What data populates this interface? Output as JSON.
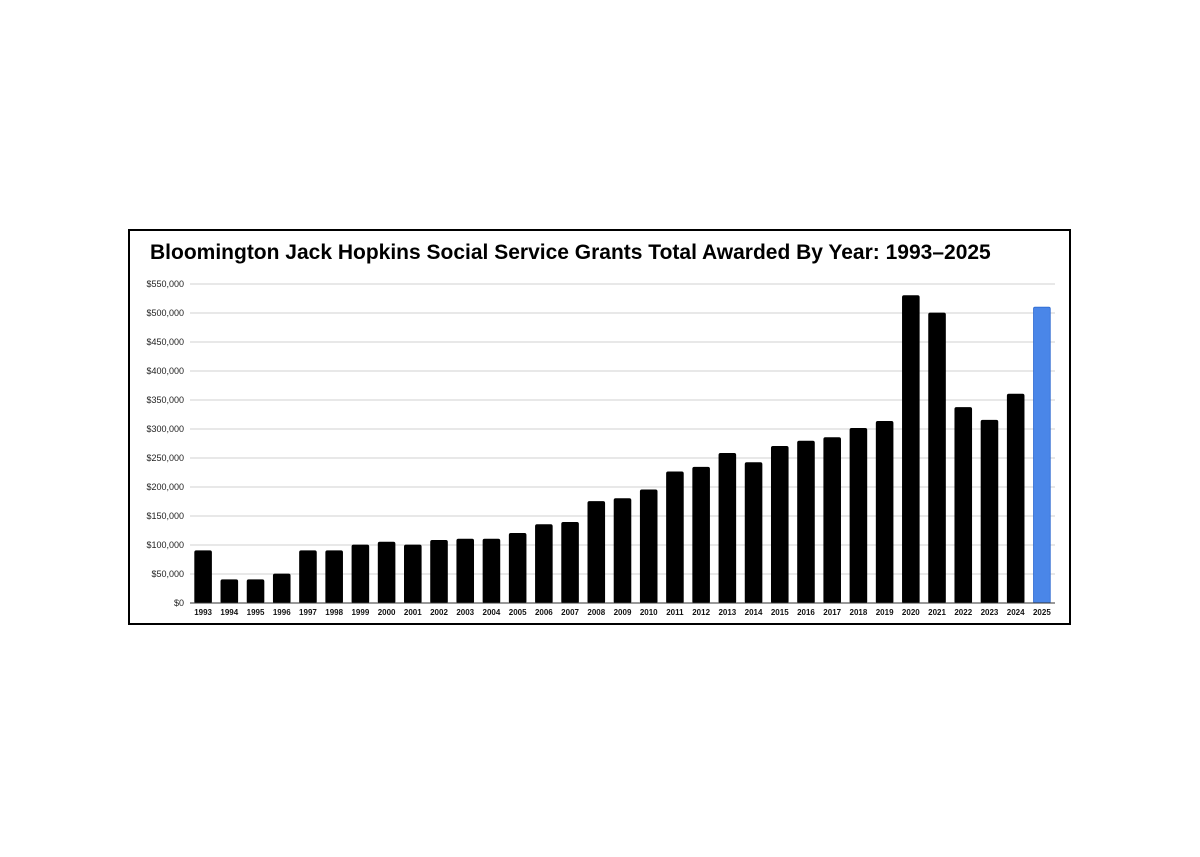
{
  "chart_data": {
    "type": "bar",
    "title": "Bloomington Jack Hopkins Social Service Grants Total Awarded By Year: 1993–2025",
    "xlabel": "",
    "ylabel": "",
    "ylim": [
      0,
      550000
    ],
    "yticks": [
      0,
      50000,
      100000,
      150000,
      200000,
      250000,
      300000,
      350000,
      400000,
      450000,
      500000,
      550000
    ],
    "ytick_labels": [
      "$0",
      "$50,000",
      "$100,000",
      "$150,000",
      "$200,000",
      "$250,000",
      "$300,000",
      "$350,000",
      "$400,000",
      "$450,000",
      "$500,000",
      "$550,000"
    ],
    "grid": true,
    "legend": "none",
    "categories": [
      "1993",
      "1994",
      "1995",
      "1996",
      "1997",
      "1998",
      "1999",
      "2000",
      "2001",
      "2002",
      "2003",
      "2004",
      "2005",
      "2006",
      "2007",
      "2008",
      "2009",
      "2010",
      "2011",
      "2012",
      "2013",
      "2014",
      "2015",
      "2016",
      "2017",
      "2018",
      "2019",
      "2020",
      "2021",
      "2022",
      "2023",
      "2024",
      "2025"
    ],
    "values": [
      90000,
      40000,
      40000,
      50000,
      90000,
      90000,
      100000,
      105000,
      100000,
      108000,
      110000,
      110000,
      120000,
      135000,
      139000,
      175000,
      180000,
      195000,
      226000,
      234000,
      258000,
      242000,
      270000,
      279000,
      285000,
      301000,
      313000,
      530000,
      500000,
      337000,
      315000,
      360000,
      510000
    ],
    "colors": {
      "default": "#000000",
      "highlight": "#4a86e8"
    },
    "highlight_categories": [
      "2025"
    ]
  }
}
